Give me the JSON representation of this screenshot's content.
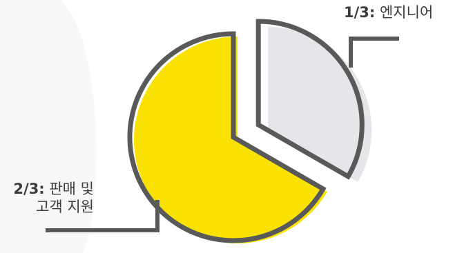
{
  "chart_data": {
    "type": "pie",
    "title": "",
    "slices": [
      {
        "fraction_label": "1/3:",
        "label": "엔지니어",
        "value": 0.3333,
        "color": "#e5e6e9",
        "exploded": true
      },
      {
        "fraction_label": "2/3:",
        "label_lines": [
          "판매 및",
          "고객 지원"
        ],
        "value": 0.6667,
        "color": "#f9e104",
        "exploded": false
      }
    ],
    "outline_color": "#595959",
    "background_shape_color": "#f7f7f7"
  }
}
